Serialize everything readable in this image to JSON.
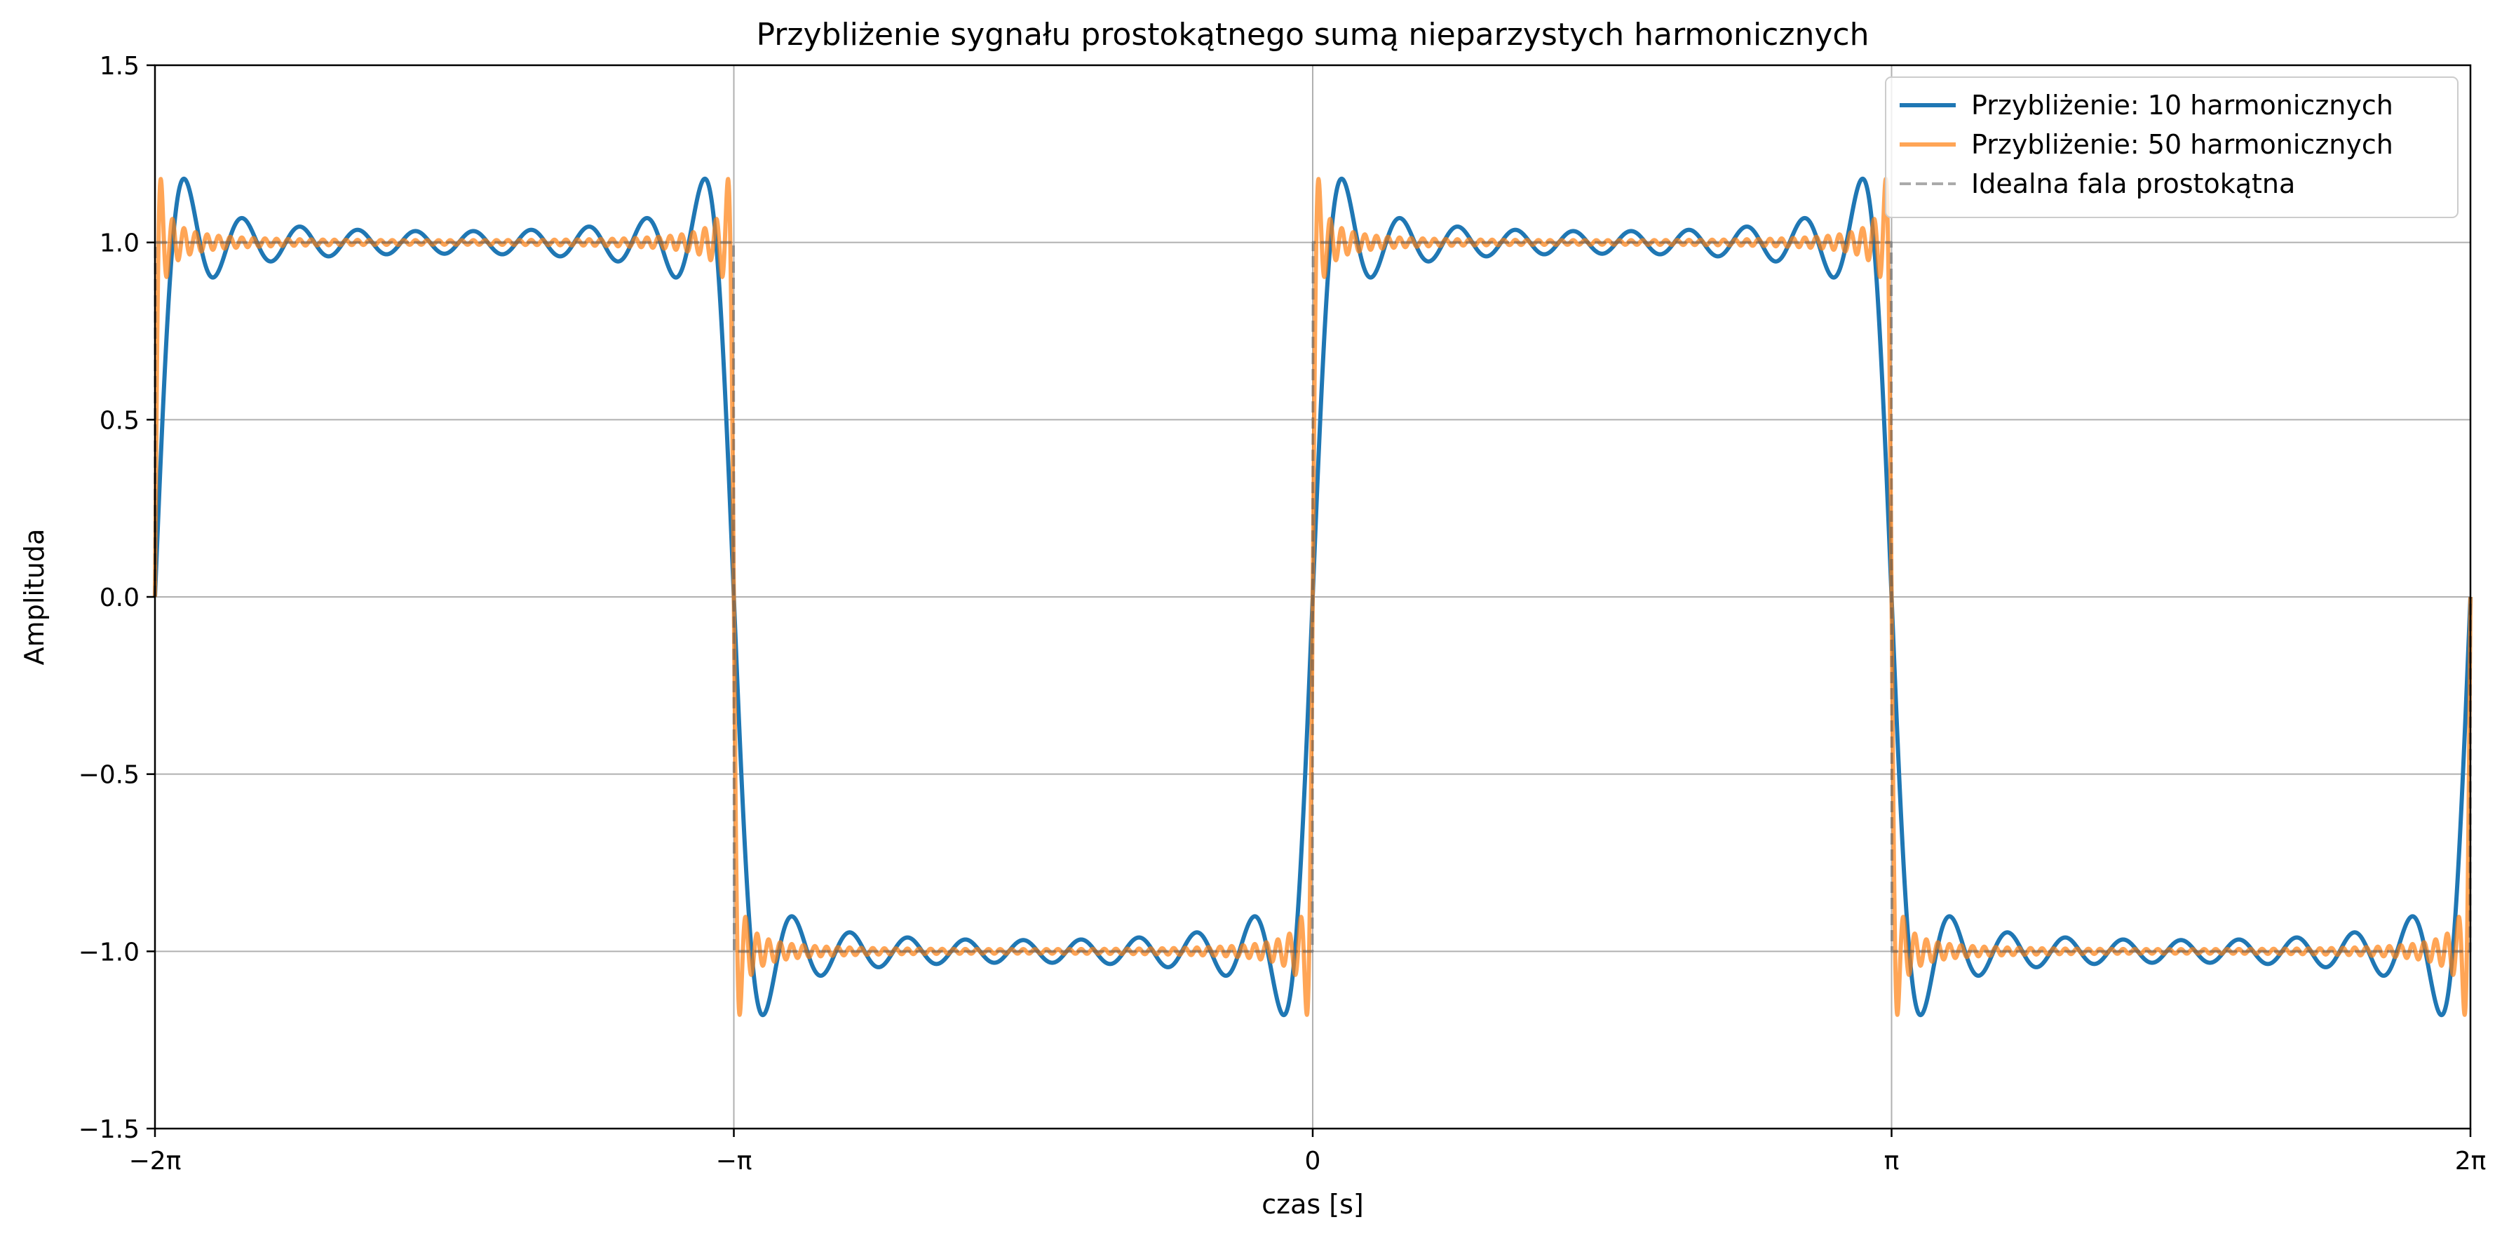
{
  "chart_data": {
    "type": "line",
    "title": "Przybliżenie sygnału prostokątnego sumą nieparzystych harmonicznych",
    "xlabel": "czas [s]",
    "ylabel": "Amplituda",
    "xlim": [
      -6.283185307179586,
      6.283185307179586
    ],
    "ylim": [
      -1.5,
      1.5
    ],
    "grid": true,
    "legend_position": "top-right",
    "x_ticks": [
      {
        "value": -6.283185307179586,
        "label": "−2π"
      },
      {
        "value": -3.141592653589793,
        "label": "−π"
      },
      {
        "value": 0,
        "label": "0"
      },
      {
        "value": 3.141592653589793,
        "label": "π"
      },
      {
        "value": 6.283185307179586,
        "label": "2π"
      }
    ],
    "y_ticks": [
      {
        "value": -1.5,
        "label": "−1.5"
      },
      {
        "value": -1.0,
        "label": "−1.0"
      },
      {
        "value": -0.5,
        "label": "−0.5"
      },
      {
        "value": 0.0,
        "label": "0.0"
      },
      {
        "value": 0.5,
        "label": "0.5"
      },
      {
        "value": 1.0,
        "label": "1.0"
      },
      {
        "value": 1.5,
        "label": "1.5"
      }
    ],
    "series": [
      {
        "name": "Przybliżenie: 10 harmonicznych",
        "kind": "fourier_square",
        "harmonics": 10,
        "color": "#1f77b4",
        "style": "solid"
      },
      {
        "name": "Przybliżenie: 50 harmonicznych",
        "kind": "fourier_square",
        "harmonics": 50,
        "color": "#ff7f0e",
        "opacity": 0.7,
        "style": "solid"
      },
      {
        "name": "Idealna fala prostokątna",
        "kind": "square",
        "color": "#555555",
        "opacity": 0.5,
        "style": "dashed"
      }
    ]
  }
}
